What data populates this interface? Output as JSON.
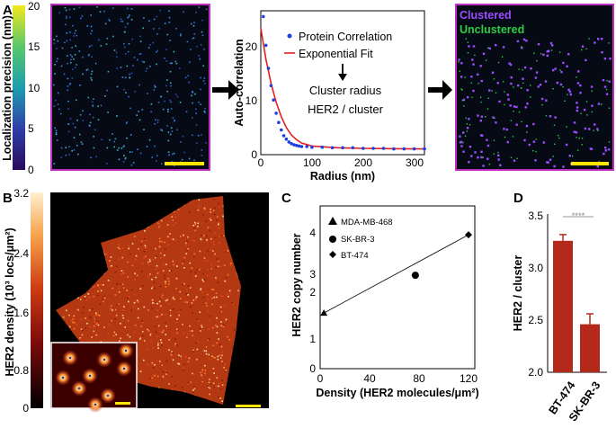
{
  "panels": {
    "a": "A",
    "b": "B",
    "c": "C",
    "d": "D"
  },
  "panel_a": {
    "colorbar_label": "Localization precision (nm)",
    "colorbar_ticks": [
      "0",
      "5",
      "10",
      "15",
      "20"
    ],
    "colorbar_range": [
      0,
      20
    ],
    "clustered_label": "Clustered",
    "unclustered_label": "Unclustered",
    "clustered_color": "#9b4dff",
    "unclustered_color": "#2ecc40",
    "frame_color": "#c030c0",
    "scale_bar_color": "#ffe600",
    "annotation_line1": "Cluster radius",
    "annotation_line2": "HER2 / cluster"
  },
  "panel_b": {
    "colorbar_label": "HER2 density (10³ locs/μm²)",
    "colorbar_ticks": [
      "0",
      "0.8",
      "1.6",
      "2.4",
      "3.2"
    ],
    "colorbar_range": [
      0,
      3.2
    ],
    "scale_bar_color": "#ffe600"
  },
  "chart_data": [
    {
      "type": "line",
      "xlabel": "Radius (nm)",
      "ylabel": "Auto-correlation",
      "xlim": [
        0,
        320
      ],
      "ylim": [
        0,
        25
      ],
      "xticks": [
        "0",
        "100",
        "200",
        "300"
      ],
      "yticks": [
        "0",
        "10",
        "20"
      ],
      "series": [
        {
          "name": "Protein Correlation",
          "color": "#1f3fe0",
          "x": [
            5,
            10,
            15,
            20,
            25,
            30,
            35,
            40,
            45,
            50,
            55,
            60,
            65,
            70,
            75,
            80,
            90,
            100,
            120,
            140,
            160,
            180,
            200,
            220,
            240,
            260,
            280,
            300,
            320
          ],
          "y": [
            24,
            19,
            15,
            12,
            9.5,
            7.2,
            5.6,
            4.3,
            3.3,
            2.7,
            2.2,
            1.9,
            1.7,
            1.6,
            1.5,
            1.4,
            1.4,
            1.3,
            1.3,
            1.2,
            1.2,
            1.2,
            1.1,
            1.1,
            1.1,
            1.0,
            1.0,
            1.0,
            1.0
          ]
        },
        {
          "name": "Exponential Fit",
          "color": "#e02020",
          "x": [
            0,
            10,
            20,
            30,
            40,
            50,
            60,
            70,
            80,
            100,
            150,
            200,
            250,
            300,
            320
          ],
          "y": [
            22,
            16.6,
            12.4,
            9.1,
            6.6,
            4.7,
            3.4,
            2.6,
            2.0,
            1.5,
            1.2,
            1.1,
            1.05,
            1.0,
            1.0
          ]
        }
      ]
    },
    {
      "type": "scatter",
      "xlabel": "Density (HER2 molecules/μm²)",
      "ylabel": "HER2 copy number",
      "xlim": [
        0,
        120
      ],
      "ylim": [
        0,
        4
      ],
      "xticks": [
        "0",
        "40",
        "80",
        "120"
      ],
      "yticks": [
        "0",
        "1",
        "2",
        "3",
        "4"
      ],
      "series": [
        {
          "name": "MDA-MB-468",
          "marker": "triangle",
          "x": [
            3
          ],
          "y": [
            1.65
          ]
        },
        {
          "name": "SK-BR-3",
          "marker": "circle",
          "x": [
            77
          ],
          "y": [
            2.77
          ]
        },
        {
          "name": "BT-474",
          "marker": "diamond",
          "x": [
            120
          ],
          "y": [
            3.97
          ]
        }
      ],
      "fit_line": {
        "x": [
          3,
          120
        ],
        "y": [
          1.65,
          3.97
        ]
      }
    },
    {
      "type": "bar",
      "ylabel": "HER2 / cluster",
      "categories": [
        "BT-474",
        "SK-BR-3"
      ],
      "values": [
        3.26,
        2.46
      ],
      "errors": [
        0.06,
        0.1
      ],
      "ylim": [
        2.0,
        3.5
      ],
      "yticks": [
        "2.0",
        "2.5",
        "3.0",
        "3.5"
      ],
      "bar_color": "#b32a1a",
      "significance": "****"
    }
  ]
}
